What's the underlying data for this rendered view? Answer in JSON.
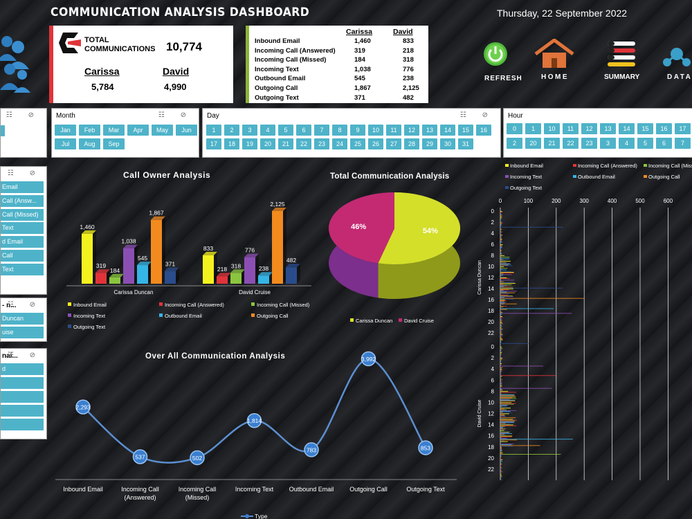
{
  "title": "COMMUNICATION ANALYSIS DASHBOARD",
  "date": "Thursday, 22 September 2022",
  "kpi": {
    "label_line1": "TOTAL",
    "label_line2": "COMMUNICATIONS",
    "total": "10,774",
    "person1": "Carissa",
    "person2": "David",
    "person1_total": "5,784",
    "person2_total": "4,990"
  },
  "breakdown": {
    "col1": "Carissa",
    "col2": "David",
    "rows": [
      {
        "label": "Inbound Email",
        "c": "1,460",
        "d": "833"
      },
      {
        "label": "Incoming Call (Answered)",
        "c": "319",
        "d": "218"
      },
      {
        "label": "Incoming Call (Missed)",
        "c": "184",
        "d": "318"
      },
      {
        "label": "Incoming Text",
        "c": "1,038",
        "d": "776"
      },
      {
        "label": "Outbound Email",
        "c": "545",
        "d": "238"
      },
      {
        "label": "Outgoing Call",
        "c": "1,867",
        "d": "2,125"
      },
      {
        "label": "Outgoing Text",
        "c": "371",
        "d": "482"
      }
    ]
  },
  "nav": {
    "refresh": "REFRESH",
    "home": "HOME",
    "summary": "SUMMARY",
    "data": "DATA"
  },
  "slicers": {
    "month": {
      "header": "Month",
      "items": [
        "Jan",
        "Feb",
        "Mar",
        "Apr",
        "May",
        "Jun",
        "Jul",
        "Aug",
        "Sep"
      ]
    },
    "day": {
      "header": "Day",
      "items": [
        "1",
        "2",
        "3",
        "4",
        "5",
        "6",
        "7",
        "8",
        "9",
        "10",
        "11",
        "12",
        "13",
        "14",
        "15",
        "16",
        "17",
        "18",
        "19",
        "20",
        "21",
        "22",
        "23",
        "24",
        "25",
        "26",
        "27",
        "28",
        "29",
        "30",
        "31"
      ]
    },
    "hour": {
      "header": "Hour",
      "items": [
        "0",
        "1",
        "10",
        "11",
        "12",
        "13",
        "14",
        "15",
        "16",
        "17",
        "2",
        "20",
        "21",
        "22",
        "23",
        "3",
        "4",
        "5",
        "6",
        "7"
      ]
    },
    "type": {
      "items": [
        "Email",
        "Call (Answ...",
        "Call (Missed)",
        "Text",
        "d Email",
        "Call",
        "Text"
      ]
    },
    "owner": {
      "header": "- n...",
      "items": [
        "Duncan",
        "uise"
      ]
    },
    "email": {
      "header": "nai...",
      "items": [
        "d",
        "",
        "",
        "",
        ""
      ]
    }
  },
  "colors": {
    "inbound_email": "#f4f21e",
    "incoming_call_answered": "#e0343a",
    "incoming_call_missed": "#8bc53f",
    "incoming_text": "#8b4fb3",
    "outbound_email": "#35b4e6",
    "outgoing_call": "#f28a1e",
    "outgoing_text": "#2a4c8c",
    "accent": "#4eb3c9"
  },
  "bar_chart": {
    "title": "Call Owner Analysis",
    "chart_data": {
      "type": "bar",
      "categories": [
        "Carissa Duncan",
        "David Cruise"
      ],
      "series": [
        {
          "name": "Inbound Email",
          "values": [
            1460,
            833
          ],
          "labels": [
            "1,460",
            "833"
          ]
        },
        {
          "name": "Incoming Call (Answered)",
          "values": [
            319,
            218
          ],
          "labels": [
            "319",
            "218"
          ]
        },
        {
          "name": "Incoming Call (Missed)",
          "values": [
            184,
            318
          ],
          "labels": [
            "184",
            "318"
          ]
        },
        {
          "name": "Incoming Text",
          "values": [
            1038,
            776
          ],
          "labels": [
            "1,038",
            "776"
          ]
        },
        {
          "name": "Outbound Email",
          "values": [
            545,
            238
          ],
          "labels": [
            "545",
            "238"
          ]
        },
        {
          "name": "Outgoing Call",
          "values": [
            1867,
            2125
          ],
          "labels": [
            "1,867",
            "2,125"
          ]
        },
        {
          "name": "Outgoing Text",
          "values": [
            371,
            482
          ],
          "labels": [
            "371",
            "482"
          ]
        }
      ]
    }
  },
  "pie_chart": {
    "title": "Total Communication Analysis",
    "chart_data": {
      "type": "pie",
      "labels": [
        "Carissa Duncan",
        "David Cruise"
      ],
      "values": [
        54,
        46
      ],
      "display": [
        "54%",
        "46%"
      ]
    }
  },
  "line_chart": {
    "title": "Over All Communication Analysis",
    "legend": "Type",
    "chart_data": {
      "type": "line",
      "categories": [
        "Inbound Email",
        "Incoming Call (Answered)",
        "Incoming Call (Missed)",
        "Incoming Text",
        "Outbound Email",
        "Outgoing Call",
        "Outgoing Text"
      ],
      "category_lines": [
        [
          "Inbound Email"
        ],
        [
          "Incoming Call",
          "(Answered)"
        ],
        [
          "Incoming Call",
          "(Missed)"
        ],
        [
          "Incoming Text"
        ],
        [
          "Outbound Email"
        ],
        [
          "Outgoing Call"
        ],
        [
          "Outgoing Text"
        ]
      ],
      "values": [
        2293,
        537,
        502,
        1814,
        783,
        3992,
        853
      ],
      "labels": [
        "2,293",
        "537",
        "502",
        "1,814",
        "783",
        "3,992",
        "853"
      ]
    }
  },
  "hour_chart": {
    "chart_data": {
      "type": "bar",
      "orientation": "horizontal",
      "x_ticks": [
        "0",
        "100",
        "200",
        "300",
        "400",
        "500",
        "600"
      ],
      "groups": [
        {
          "name": "Carissa Duncan",
          "y_ticks": [
            "0",
            "2",
            "4",
            "6",
            "8",
            "10",
            "12",
            "14",
            "16",
            "18",
            "20",
            "22"
          ]
        },
        {
          "name": "David Cruise",
          "y_ticks": [
            "0",
            "2",
            "4",
            "6",
            "8",
            "10",
            "12",
            "14",
            "16",
            "18",
            "20",
            "22"
          ]
        }
      ],
      "legend": [
        "Inbound Email",
        "Incoming Call (Answered)",
        "Incoming Call (Missi",
        "Incoming Text",
        "Outbound Email",
        "Outgoing Call",
        "Outgoing Text"
      ]
    }
  }
}
